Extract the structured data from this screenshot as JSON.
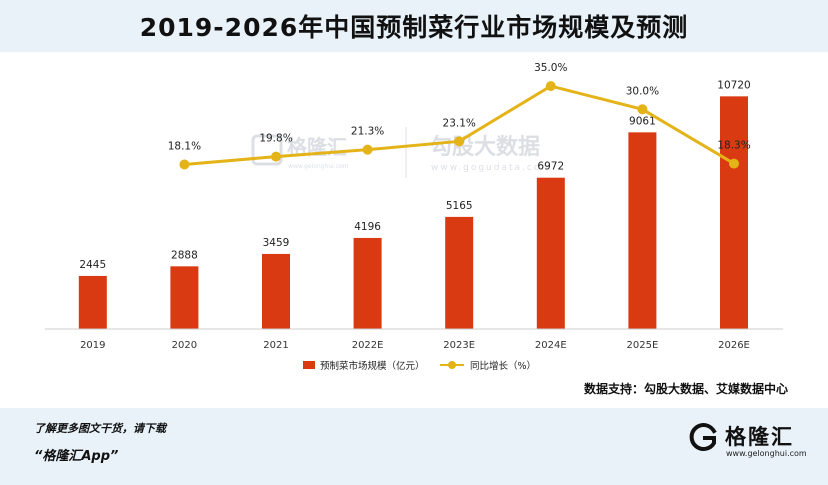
{
  "title": "2019-2026年中国预制菜行业市场规模及预测",
  "chart_data": {
    "type": "bar+line",
    "categories": [
      "2019",
      "2020",
      "2021",
      "2022E",
      "2023E",
      "2024E",
      "2025E",
      "2026E"
    ],
    "series": [
      {
        "name": "预制菜市场规模（亿元）",
        "type": "bar",
        "color": "#d93a12",
        "values": [
          2445,
          2888,
          3459,
          4196,
          5165,
          6972,
          9061,
          10720
        ]
      },
      {
        "name": "同比增长（%）",
        "type": "line",
        "color": "#e4b317",
        "values": [
          null,
          18.1,
          19.8,
          21.3,
          23.1,
          35.0,
          30.0,
          18.3
        ],
        "labels": [
          "",
          "18.1%",
          "19.8%",
          "21.3%",
          "23.1%",
          "35.0%",
          "30.0%",
          "18.3%"
        ]
      }
    ],
    "bar_ylim": [
      0,
      14500
    ],
    "line_ylim": [
      0,
      40
    ],
    "legend_position": "bottom-center"
  },
  "watermark": {
    "brand1": "格隆汇",
    "brand1_url": "www.gelonghui.com",
    "brand2": "勾股大数据",
    "brand2_url": "www.gogudata.com"
  },
  "source": "数据支持：勾股大数据、艾媒数据中心",
  "promo": {
    "line1": "了解更多图文干货，请下载",
    "line2": "“格隆汇App”"
  },
  "brand": {
    "name": "格隆汇",
    "url": "www.gelonghui.com"
  }
}
